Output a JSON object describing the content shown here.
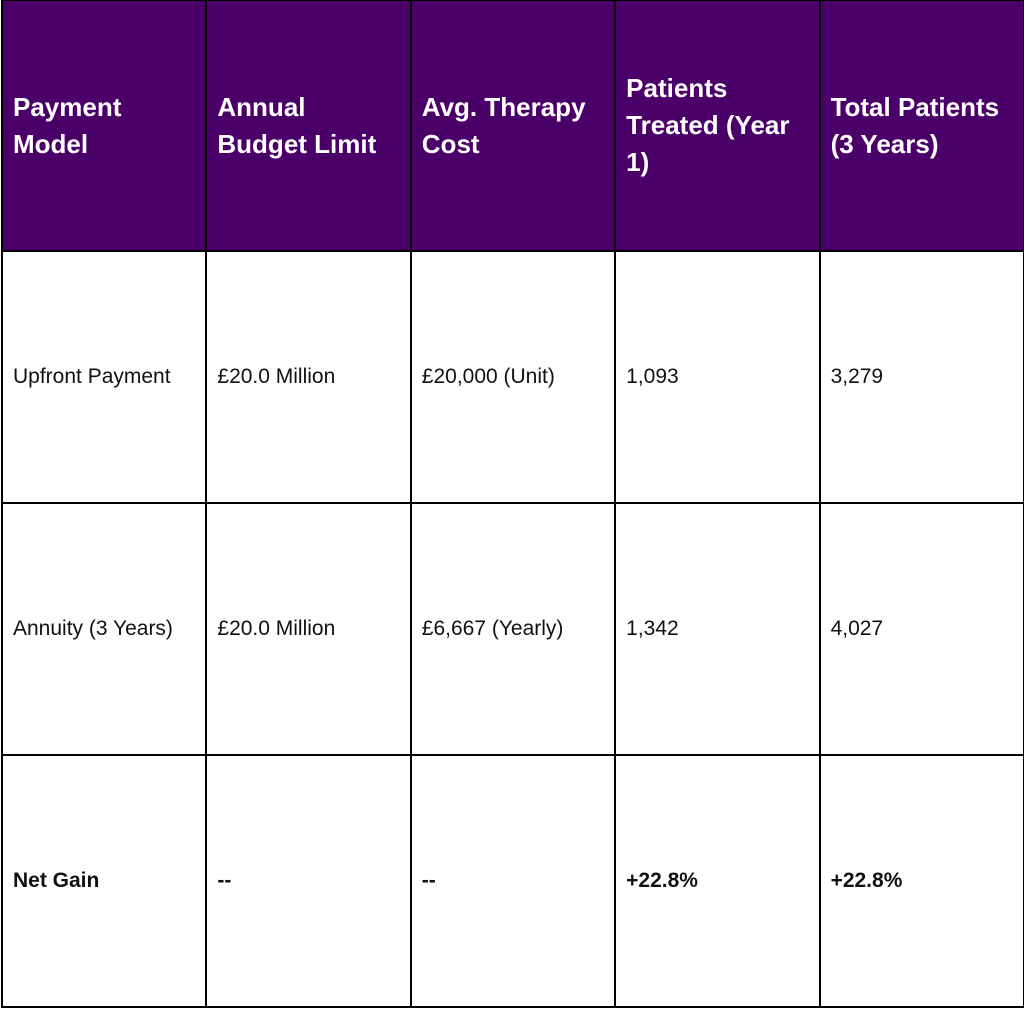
{
  "table": {
    "headers": [
      "Payment Model",
      "Annual Budget Limit",
      "Avg. Therapy Cost",
      "Patients Treated (Year 1)",
      "Total Patients (3 Years)"
    ],
    "rows": [
      [
        "Upfront Payment",
        "£20.0 Million",
        "£20,000 (Unit)",
        "1,093",
        "3,279"
      ],
      [
        "Annuity (3 Years)",
        "£20.0 Million",
        "£6,667 (Yearly)",
        "1,342",
        "4,027"
      ],
      [
        "Net Gain",
        "--",
        "--",
        "+22.8%",
        "+22.8%"
      ]
    ]
  },
  "colors": {
    "header_background": "#4b0069",
    "header_text": "#ffffff",
    "border": "#000000"
  }
}
